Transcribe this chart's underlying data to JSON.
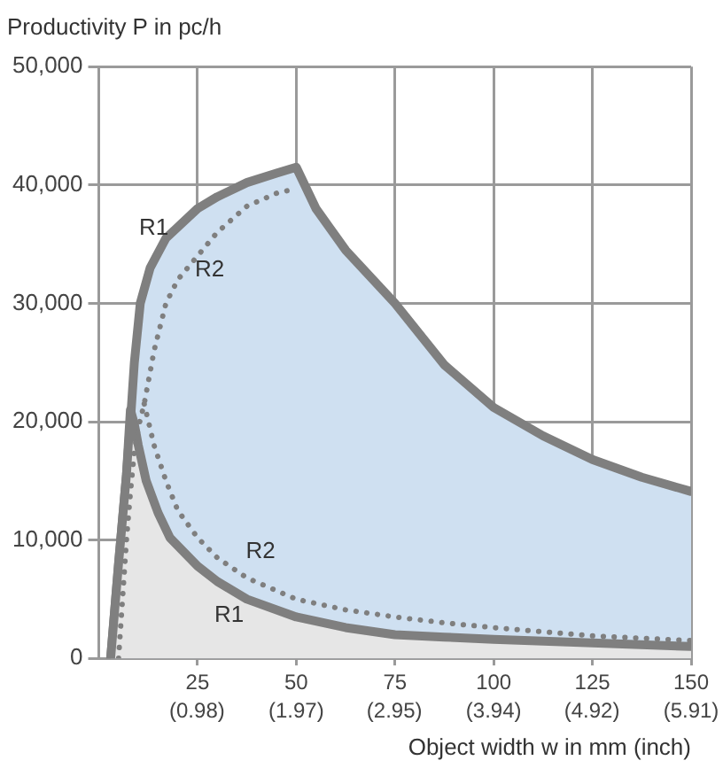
{
  "chart_data": {
    "type": "line",
    "ylabel": "Productivity P in pc/h",
    "xlabel": "Object width w in mm (inch)",
    "xlim": [
      0,
      150
    ],
    "xticks": [
      25,
      50,
      75,
      100,
      125,
      150
    ],
    "x2lim": [
      0,
      5.91
    ],
    "x2ticks": [
      {
        "value": 0.98,
        "label": "(0.98)"
      },
      {
        "value": 1.97,
        "label": "(1.97)"
      },
      {
        "value": 2.95,
        "label": "(2.95)"
      },
      {
        "value": 3.94,
        "label": "(3.94)"
      },
      {
        "value": 4.92,
        "label": "(4.92)"
      },
      {
        "value": 5.91,
        "label": "(5.91)"
      }
    ],
    "ylim": [
      0,
      50000
    ],
    "yticks": [
      {
        "value": 0,
        "label": "0"
      },
      {
        "value": 10000,
        "label": "10,000"
      },
      {
        "value": 20000,
        "label": "20,000"
      },
      {
        "value": 30000,
        "label": "30,000"
      },
      {
        "value": 40000,
        "label": "40,000"
      },
      {
        "value": 50000,
        "label": "50,000"
      }
    ],
    "grid": true,
    "legend": false,
    "marker": "none",
    "series": [
      {
        "type": "area",
        "color": "#cfe0f1",
        "x": [
          3,
          5,
          7,
          8,
          9,
          10.5,
          13,
          17,
          25,
          30,
          37.5,
          45,
          50,
          55,
          62.5,
          75,
          87.5,
          100,
          112.5,
          125,
          137.5,
          150
        ],
        "values": [
          0,
          8000,
          15500,
          20000,
          25000,
          30000,
          33000,
          35500,
          38000,
          39000,
          40200,
          41000,
          41500,
          38000,
          34500,
          30000,
          24800,
          21200,
          18800,
          16800,
          15300,
          14100
        ]
      },
      {
        "type": "area",
        "color": "#e6e6e6",
        "x": [
          3,
          5,
          7,
          8,
          9,
          10,
          12,
          15,
          18,
          25,
          30,
          37.5,
          50,
          62.5,
          75,
          87.5,
          100,
          125,
          150
        ],
        "values": [
          0,
          8000,
          15500,
          21000,
          19800,
          18000,
          15000,
          12300,
          10200,
          7800,
          6500,
          5000,
          3500,
          2600,
          2000,
          1800,
          1600,
          1300,
          1000
        ]
      },
      {
        "type": "line",
        "color": "#7f7f7f",
        "line_style": "dotted",
        "x": [
          5,
          6,
          7,
          8,
          9,
          10,
          11.5,
          14,
          17,
          20,
          25,
          30,
          37.5,
          45,
          50
        ],
        "values": [
          0,
          5000,
          10000,
          14000,
          17500,
          19500,
          21500,
          26000,
          30000,
          32000,
          34000,
          36000,
          38200,
          39300,
          39700
        ]
      },
      {
        "type": "line",
        "color": "#7f7f7f",
        "line_style": "dotted",
        "x": [
          11.5,
          14,
          17,
          20,
          25,
          30,
          37.5,
          50,
          62.5,
          75,
          87.5,
          100,
          125,
          150
        ],
        "values": [
          21500,
          18000,
          15000,
          12500,
          10200,
          8500,
          6800,
          5000,
          4100,
          3500,
          3000,
          2600,
          1900,
          1500
        ]
      }
    ],
    "annotations": [
      "R1",
      "R2",
      "R2",
      "R1"
    ]
  }
}
